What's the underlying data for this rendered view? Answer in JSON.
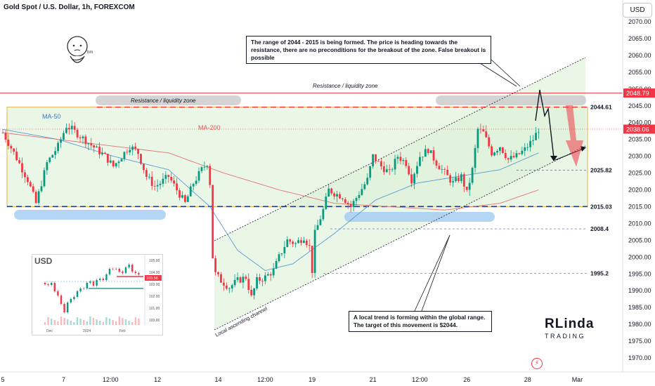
{
  "header": {
    "symbol_title": "Gold Spot / U.S. Dollar, 1h, FOREXCOM",
    "currency_button": "USD"
  },
  "colors": {
    "up": "#089981",
    "down": "#f23645",
    "ma50": "#5b9bd5",
    "ma200": "#e57373",
    "resistance": "#f23645",
    "support": "#1e3a8a",
    "zone_fill": "#d8f1d4",
    "zone_border": "#e8b04a"
  },
  "chart_data": {
    "type": "candlestick",
    "y_axis": {
      "ticks": [
        1970,
        1975,
        1980,
        1985,
        1990,
        1995,
        2000,
        2005,
        2010,
        2015,
        2020,
        2025,
        2030,
        2035,
        2040,
        2045,
        2050,
        2055,
        2060,
        2065,
        2070
      ],
      "tick_labels": [
        "1970.00",
        "1975.00",
        "1980.00",
        "1985.00",
        "1990.00",
        "1995.00",
        "2000.00",
        "2005.00",
        "2010.00",
        "2015.00",
        "2020.00",
        "2025.00",
        "2030.00",
        "2035.00",
        "2040.00",
        "2045.00",
        "2050.00",
        "2055.00",
        "2060.00",
        "2065.00",
        "2070.00"
      ],
      "ylim": [
        1967.5,
        2073.5
      ]
    },
    "x_axis": {
      "tick_labels": [
        "5",
        "7",
        "12:00",
        "12",
        "14",
        "12:00",
        "19",
        "21",
        "12:00",
        "26",
        "28",
        "Mar"
      ],
      "tick_index": [
        0,
        22,
        39,
        56,
        78,
        95,
        112,
        134,
        151,
        168,
        190,
        208
      ]
    },
    "price_badges": [
      {
        "value": 2048.79,
        "label": "2048.79"
      },
      {
        "value": 2038.06,
        "label": "2038.06"
      }
    ],
    "levels": [
      {
        "value": 2044.61,
        "label": "2044.61",
        "style": "red-dashed"
      },
      {
        "value": 2025.82,
        "label": "2025.82",
        "style": "thin-dashed"
      },
      {
        "value": 2015.03,
        "label": "2015.03",
        "style": "blue-dashed"
      },
      {
        "value": 2008.4,
        "label": "2008.4",
        "style": "thin-dashed"
      },
      {
        "value": 1995.2,
        "label": "1995.2",
        "style": "thin-dashed"
      }
    ],
    "annotations": {
      "ma50": "MA-50",
      "ma200": "MA-200",
      "resistance_zone": "Resistance / liquidity zone",
      "resistance_zone_right": "Resistance / liquidity zone",
      "channel": "Local ascending channel"
    },
    "close_anchors": [
      [
        0,
        2037
      ],
      [
        4,
        2031
      ],
      [
        9,
        2023
      ],
      [
        12,
        2016
      ],
      [
        16,
        2028
      ],
      [
        20,
        2033
      ],
      [
        23,
        2039
      ],
      [
        25,
        2038
      ],
      [
        28,
        2036
      ],
      [
        31,
        2034
      ],
      [
        34,
        2032
      ],
      [
        37,
        2030
      ],
      [
        40,
        2027
      ],
      [
        43,
        2030
      ],
      [
        46,
        2033
      ],
      [
        49,
        2031
      ],
      [
        52,
        2024
      ],
      [
        55,
        2021
      ],
      [
        57,
        2022
      ],
      [
        60,
        2024
      ],
      [
        63,
        2020
      ],
      [
        66,
        2016
      ],
      [
        69,
        2022
      ],
      [
        72,
        2026
      ],
      [
        74,
        2028
      ],
      [
        75,
        2022
      ],
      [
        76,
        2000
      ],
      [
        77,
        1995
      ],
      [
        79,
        1993
      ],
      [
        82,
        1991
      ],
      [
        85,
        1993
      ],
      [
        88,
        1994
      ],
      [
        90,
        1988
      ],
      [
        92,
        1993
      ],
      [
        95,
        1994
      ],
      [
        98,
        1996
      ],
      [
        100,
        2000
      ],
      [
        103,
        2005
      ],
      [
        106,
        2004
      ],
      [
        109,
        2006
      ],
      [
        111,
        2003
      ],
      [
        112,
        1996
      ],
      [
        113,
        2007
      ],
      [
        116,
        2014
      ],
      [
        118,
        2020
      ],
      [
        120,
        2019
      ],
      [
        123,
        2018
      ],
      [
        126,
        2015
      ],
      [
        129,
        2019
      ],
      [
        132,
        2023
      ],
      [
        134,
        2030
      ],
      [
        137,
        2027
      ],
      [
        140,
        2025
      ],
      [
        143,
        2030
      ],
      [
        146,
        2028
      ],
      [
        148,
        2023
      ],
      [
        151,
        2030
      ],
      [
        154,
        2032
      ],
      [
        157,
        2028
      ],
      [
        160,
        2025
      ],
      [
        163,
        2022
      ],
      [
        166,
        2024
      ],
      [
        168,
        2019
      ],
      [
        170,
        2026
      ],
      [
        172,
        2038
      ],
      [
        174,
        2037
      ],
      [
        177,
        2031
      ],
      [
        180,
        2033
      ],
      [
        183,
        2029
      ],
      [
        186,
        2030
      ],
      [
        189,
        2032
      ],
      [
        192,
        2035
      ],
      [
        194,
        2038
      ]
    ],
    "ma50_anchors": [
      [
        0,
        2038
      ],
      [
        20,
        2035
      ],
      [
        40,
        2030
      ],
      [
        60,
        2026
      ],
      [
        75,
        2015
      ],
      [
        85,
        2002
      ],
      [
        95,
        1996
      ],
      [
        105,
        1998
      ],
      [
        120,
        2007
      ],
      [
        135,
        2017
      ],
      [
        150,
        2022
      ],
      [
        165,
        2024
      ],
      [
        180,
        2026
      ],
      [
        194,
        2031
      ]
    ],
    "ma200_anchors": [
      [
        0,
        2037
      ],
      [
        30,
        2034
      ],
      [
        60,
        2031
      ],
      [
        80,
        2025
      ],
      [
        100,
        2020
      ],
      [
        120,
        2016
      ],
      [
        140,
        2015
      ],
      [
        160,
        2014
      ],
      [
        180,
        2016
      ],
      [
        194,
        2020
      ]
    ],
    "inset": {
      "title": "USD",
      "y_ticks": [
        "105.00",
        "104.00",
        "103.00",
        "102.00",
        "101.00",
        "100.00"
      ],
      "badge": "103.56",
      "x_labels": [
        "Dec",
        "2024",
        "Feb"
      ]
    }
  },
  "mascot_text": "hm",
  "logo": {
    "main": "RLinda",
    "sub": "TRADING"
  },
  "notes": {
    "top": "The range of 2044 - 2015 is being formed. The price is heading towards the resistance, there are no preconditions for the breakout of the zone. False breakout is possible",
    "bottom": "A local trend is forming within the global range. The target of this movement is $2044."
  }
}
